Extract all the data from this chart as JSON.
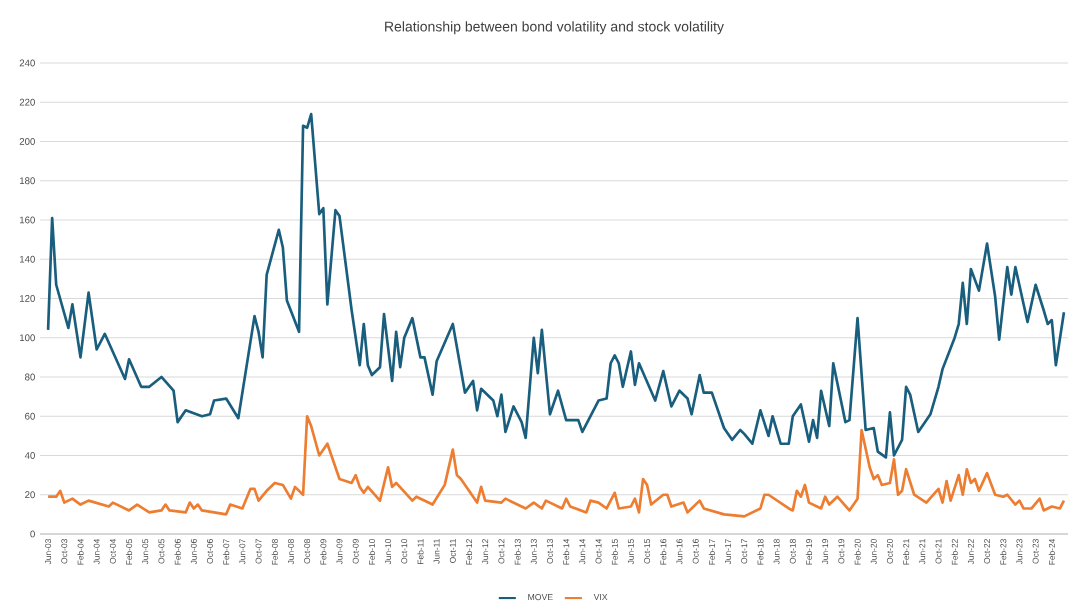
{
  "chart_data": {
    "type": "line",
    "title": "Relationship between bond volatility and stock volatility",
    "xlim": [
      "2003-04",
      "2024-06"
    ],
    "ylim": [
      0,
      240
    ],
    "yticks": [
      0,
      20,
      40,
      60,
      80,
      100,
      120,
      140,
      160,
      180,
      200,
      220,
      240
    ],
    "xticks": [
      {
        "value": "2003-06",
        "label": "Jun-03"
      },
      {
        "value": "2003-10",
        "label": "Oct-03"
      },
      {
        "value": "2004-02",
        "label": "Feb-04"
      },
      {
        "value": "2004-06",
        "label": "Jun-04"
      },
      {
        "value": "2004-10",
        "label": "Oct-04"
      },
      {
        "value": "2005-02",
        "label": "Feb-05"
      },
      {
        "value": "2005-06",
        "label": "Jun-05"
      },
      {
        "value": "2005-10",
        "label": "Oct-05"
      },
      {
        "value": "2006-02",
        "label": "Feb-06"
      },
      {
        "value": "2006-06",
        "label": "Jun-06"
      },
      {
        "value": "2006-10",
        "label": "Oct-06"
      },
      {
        "value": "2007-02",
        "label": "Feb-07"
      },
      {
        "value": "2007-06",
        "label": "Jun-07"
      },
      {
        "value": "2007-10",
        "label": "Oct-07"
      },
      {
        "value": "2008-02",
        "label": "Feb-08"
      },
      {
        "value": "2008-06",
        "label": "Jun-08"
      },
      {
        "value": "2008-10",
        "label": "Oct-08"
      },
      {
        "value": "2009-02",
        "label": "Feb-09"
      },
      {
        "value": "2009-06",
        "label": "Jun-09"
      },
      {
        "value": "2009-10",
        "label": "Oct-09"
      },
      {
        "value": "2010-02",
        "label": "Feb-10"
      },
      {
        "value": "2010-06",
        "label": "Jun-10"
      },
      {
        "value": "2010-10",
        "label": "Oct-10"
      },
      {
        "value": "2011-02",
        "label": "Feb-11"
      },
      {
        "value": "2011-06",
        "label": "Jun-11"
      },
      {
        "value": "2011-10",
        "label": "Oct-11"
      },
      {
        "value": "2012-02",
        "label": "Feb-12"
      },
      {
        "value": "2012-06",
        "label": "Jun-12"
      },
      {
        "value": "2012-10",
        "label": "Oct-12"
      },
      {
        "value": "2013-02",
        "label": "Feb-13"
      },
      {
        "value": "2013-06",
        "label": "Jun-13"
      },
      {
        "value": "2013-10",
        "label": "Oct-13"
      },
      {
        "value": "2014-02",
        "label": "Feb-14"
      },
      {
        "value": "2014-06",
        "label": "Jun-14"
      },
      {
        "value": "2014-10",
        "label": "Oct-14"
      },
      {
        "value": "2015-02",
        "label": "Feb-15"
      },
      {
        "value": "2015-06",
        "label": "Jun-15"
      },
      {
        "value": "2015-10",
        "label": "Oct-15"
      },
      {
        "value": "2016-02",
        "label": "Feb-16"
      },
      {
        "value": "2016-06",
        "label": "Jun-16"
      },
      {
        "value": "2016-10",
        "label": "Oct-16"
      },
      {
        "value": "2017-02",
        "label": "Feb-17"
      },
      {
        "value": "2017-06",
        "label": "Jun-17"
      },
      {
        "value": "2017-10",
        "label": "Oct-17"
      },
      {
        "value": "2018-02",
        "label": "Feb-18"
      },
      {
        "value": "2018-06",
        "label": "Jun-18"
      },
      {
        "value": "2018-10",
        "label": "Oct-18"
      },
      {
        "value": "2019-02",
        "label": "Feb-19"
      },
      {
        "value": "2019-06",
        "label": "Jun-19"
      },
      {
        "value": "2019-10",
        "label": "Oct-19"
      },
      {
        "value": "2020-02",
        "label": "Feb-20"
      },
      {
        "value": "2020-06",
        "label": "Jun-20"
      },
      {
        "value": "2020-10",
        "label": "Oct-20"
      },
      {
        "value": "2021-02",
        "label": "Feb-21"
      },
      {
        "value": "2021-06",
        "label": "Jun-21"
      },
      {
        "value": "2021-10",
        "label": "Oct-21"
      },
      {
        "value": "2022-02",
        "label": "Feb-22"
      },
      {
        "value": "2022-06",
        "label": "Jun-22"
      },
      {
        "value": "2022-10",
        "label": "Oct-22"
      },
      {
        "value": "2023-02",
        "label": "Feb-23"
      },
      {
        "value": "2023-06",
        "label": "Jun-23"
      },
      {
        "value": "2023-10",
        "label": "Oct-23"
      },
      {
        "value": "2024-02",
        "label": "Feb-24"
      }
    ],
    "grid": "y",
    "legend": "bottom",
    "series": [
      {
        "name": "MOVE",
        "color": "#1a5e7e",
        "x": [
          "2003-06",
          "2003-07",
          "2003-08",
          "2003-11",
          "2003-12",
          "2004-02",
          "2004-04",
          "2004-06",
          "2004-08",
          "2005-01",
          "2005-02",
          "2005-05",
          "2005-07",
          "2005-10",
          "2006-01",
          "2006-02",
          "2006-04",
          "2006-08",
          "2006-10",
          "2006-11",
          "2007-02",
          "2007-05",
          "2007-09",
          "2007-10",
          "2007-11",
          "2007-12",
          "2008-03",
          "2008-04",
          "2008-05",
          "2008-08",
          "2008-09",
          "2008-10",
          "2008-11",
          "2009-01",
          "2009-02",
          "2009-03",
          "2009-05",
          "2009-06",
          "2009-09",
          "2009-11",
          "2009-12",
          "2010-01",
          "2010-02",
          "2010-04",
          "2010-05",
          "2010-07",
          "2010-08",
          "2010-09",
          "2010-10",
          "2010-12",
          "2011-02",
          "2011-03",
          "2011-05",
          "2011-06",
          "2011-10",
          "2012-01",
          "2012-03",
          "2012-04",
          "2012-05",
          "2012-08",
          "2012-09",
          "2012-10",
          "2012-11",
          "2013-01",
          "2013-03",
          "2013-04",
          "2013-06",
          "2013-07",
          "2013-08",
          "2013-10",
          "2013-12",
          "2014-02",
          "2014-05",
          "2014-06",
          "2014-10",
          "2014-12",
          "2015-01",
          "2015-02",
          "2015-03",
          "2015-04",
          "2015-06",
          "2015-07",
          "2015-08",
          "2015-12",
          "2016-02",
          "2016-04",
          "2016-06",
          "2016-08",
          "2016-09",
          "2016-11",
          "2016-12",
          "2017-02",
          "2017-05",
          "2017-07",
          "2017-09",
          "2017-10",
          "2017-12",
          "2018-02",
          "2018-04",
          "2018-05",
          "2018-07",
          "2018-09",
          "2018-10",
          "2018-12",
          "2019-02",
          "2019-03",
          "2019-04",
          "2019-05",
          "2019-07",
          "2019-08",
          "2019-11",
          "2019-12",
          "2020-02",
          "2020-04",
          "2020-06",
          "2020-07",
          "2020-09",
          "2020-10",
          "2020-11",
          "2021-01",
          "2021-02",
          "2021-03",
          "2021-05",
          "2021-08",
          "2021-10",
          "2021-11",
          "2022-02",
          "2022-03",
          "2022-04",
          "2022-05",
          "2022-06",
          "2022-08",
          "2022-10",
          "2022-12",
          "2023-01",
          "2023-03",
          "2023-04",
          "2023-05",
          "2023-08",
          "2023-10",
          "2023-12",
          "2024-01",
          "2024-02",
          "2024-03",
          "2024-05"
        ],
        "values": [
          104,
          161,
          127,
          105,
          117,
          90,
          123,
          94,
          102,
          79,
          89,
          75,
          75,
          80,
          73,
          57,
          63,
          60,
          61,
          68,
          69,
          59,
          111,
          103,
          90,
          132,
          155,
          146,
          119,
          103,
          208,
          207,
          214,
          163,
          166,
          117,
          165,
          162,
          114,
          86,
          107,
          86,
          81,
          85,
          112,
          78,
          103,
          85,
          100,
          110,
          90,
          90,
          71,
          88,
          107,
          72,
          78,
          63,
          74,
          68,
          60,
          71,
          52,
          65,
          57,
          49,
          100,
          82,
          104,
          61,
          73,
          58,
          58,
          52,
          68,
          69,
          87,
          91,
          87,
          75,
          93,
          76,
          87,
          68,
          83,
          65,
          73,
          69,
          61,
          81,
          72,
          72,
          54,
          48,
          53,
          51,
          46,
          63,
          50,
          60,
          46,
          46,
          60,
          66,
          47,
          58,
          49,
          73,
          55,
          87,
          57,
          58,
          110,
          53,
          54,
          42,
          39,
          62,
          40,
          48,
          75,
          71,
          52,
          61,
          75,
          84,
          100,
          107,
          128,
          107,
          135,
          124,
          148,
          121,
          99,
          136,
          122,
          136,
          108,
          127,
          114,
          107,
          109,
          86,
          113
        ]
      },
      {
        "name": "VIX",
        "color": "#ed7d31",
        "x": [
          "2003-06",
          "2003-08",
          "2003-09",
          "2003-10",
          "2003-12",
          "2004-02",
          "2004-04",
          "2004-09",
          "2004-10",
          "2005-02",
          "2005-04",
          "2005-07",
          "2005-10",
          "2005-11",
          "2005-12",
          "2006-04",
          "2006-05",
          "2006-06",
          "2006-07",
          "2006-08",
          "2007-02",
          "2007-03",
          "2007-06",
          "2007-08",
          "2007-09",
          "2007-10",
          "2007-12",
          "2008-02",
          "2008-04",
          "2008-06",
          "2008-07",
          "2008-09",
          "2008-10",
          "2008-11",
          "2009-01",
          "2009-03",
          "2009-06",
          "2009-09",
          "2009-10",
          "2009-11",
          "2009-12",
          "2010-01",
          "2010-04",
          "2010-06",
          "2010-07",
          "2010-08",
          "2010-12",
          "2011-01",
          "2011-05",
          "2011-08",
          "2011-10",
          "2011-11",
          "2011-12",
          "2012-04",
          "2012-05",
          "2012-06",
          "2012-10",
          "2012-11",
          "2013-04",
          "2013-06",
          "2013-08",
          "2013-09",
          "2014-01",
          "2014-02",
          "2014-03",
          "2014-07",
          "2014-08",
          "2014-10",
          "2014-12",
          "2015-02",
          "2015-03",
          "2015-06",
          "2015-07",
          "2015-08",
          "2015-09",
          "2015-10",
          "2015-11",
          "2016-02",
          "2016-03",
          "2016-04",
          "2016-07",
          "2016-08",
          "2016-11",
          "2016-12",
          "2017-05",
          "2017-10",
          "2018-02",
          "2018-03",
          "2018-04",
          "2018-09",
          "2018-10",
          "2018-11",
          "2018-12",
          "2019-01",
          "2019-02",
          "2019-05",
          "2019-06",
          "2019-07",
          "2019-09",
          "2019-12",
          "2020-02",
          "2020-03",
          "2020-05",
          "2020-06",
          "2020-07",
          "2020-08",
          "2020-10",
          "2020-11",
          "2020-12",
          "2021-01",
          "2021-02",
          "2021-04",
          "2021-07",
          "2021-10",
          "2021-11",
          "2021-12",
          "2022-01",
          "2022-03",
          "2022-04",
          "2022-05",
          "2022-06",
          "2022-07",
          "2022-08",
          "2022-10",
          "2022-12",
          "2023-02",
          "2023-03",
          "2023-05",
          "2023-06",
          "2023-07",
          "2023-09",
          "2023-11",
          "2023-12",
          "2024-02",
          "2024-04",
          "2024-05"
        ],
        "values": [
          19,
          19,
          22,
          16,
          18,
          15,
          17,
          14,
          16,
          12,
          15,
          11,
          12,
          15,
          12,
          11,
          16,
          13,
          15,
          12,
          10,
          15,
          13,
          23,
          23,
          17,
          22,
          26,
          25,
          18,
          24,
          20,
          60,
          55,
          40,
          46,
          28,
          26,
          30,
          24,
          21,
          24,
          17,
          34,
          24,
          26,
          17,
          19,
          15,
          25,
          43,
          30,
          28,
          16,
          24,
          17,
          16,
          18,
          13,
          16,
          13,
          17,
          13,
          18,
          14,
          11,
          17,
          16,
          13,
          21,
          13,
          14,
          18,
          11,
          28,
          25,
          15,
          20,
          20,
          14,
          16,
          11,
          17,
          13,
          10,
          9,
          13,
          20,
          20,
          13,
          12,
          22,
          19,
          25,
          16,
          13,
          19,
          15,
          19,
          12,
          18,
          53,
          34,
          28,
          30,
          25,
          26,
          38,
          20,
          22,
          33,
          20,
          16,
          23,
          16,
          27,
          17,
          30,
          20,
          33,
          26,
          28,
          22,
          31,
          20,
          19,
          20,
          15,
          17,
          13,
          13,
          18,
          12,
          14,
          13,
          17
        ]
      }
    ]
  }
}
